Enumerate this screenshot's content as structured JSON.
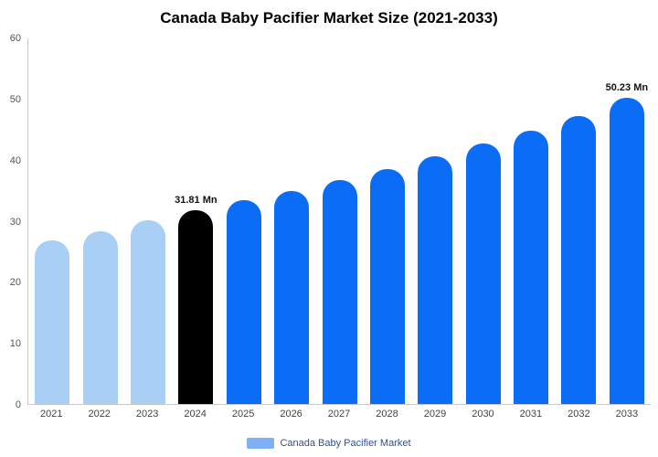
{
  "title": "Canada Baby Pacifier Market Size (2021-2033)",
  "legend": {
    "label": "Canada Baby Pacifier Market",
    "swatch_color": "#7fb0f5"
  },
  "colors": {
    "historical_bar": "#a9cff4",
    "highlight_bar": "#000000",
    "forecast_bar": "#0b6df6",
    "axis_line": "#c9c9c9",
    "tick_text": "#555555"
  },
  "chart_data": {
    "type": "bar",
    "title": "Canada Baby Pacifier Market Size (2021-2033)",
    "xlabel": "",
    "ylabel": "",
    "ylim": [
      0,
      60
    ],
    "yticks": [
      0,
      10,
      20,
      30,
      40,
      50,
      60
    ],
    "grid": false,
    "legend_position": "bottom",
    "categories": [
      "2021",
      "2022",
      "2023",
      "2024",
      "2025",
      "2026",
      "2027",
      "2028",
      "2029",
      "2030",
      "2031",
      "2032",
      "2033"
    ],
    "values": [
      26.9,
      28.4,
      30.1,
      31.81,
      33.5,
      34.9,
      36.7,
      38.6,
      40.6,
      42.7,
      44.8,
      47.3,
      50.23
    ],
    "bar_colors": [
      "#a9cff4",
      "#a9cff4",
      "#a9cff4",
      "#000000",
      "#0b6df6",
      "#0b6df6",
      "#0b6df6",
      "#0b6df6",
      "#0b6df6",
      "#0b6df6",
      "#0b6df6",
      "#0b6df6",
      "#0b6df6"
    ],
    "bar_labels": [
      "",
      "",
      "",
      "31.81 Mn",
      "",
      "",
      "",
      "",
      "",
      "",
      "",
      "",
      "50.23 Mn"
    ]
  }
}
